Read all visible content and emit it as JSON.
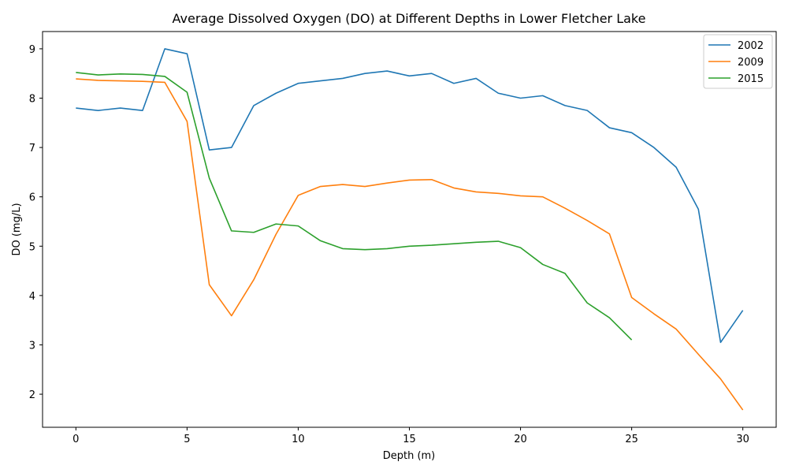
{
  "chart_data": {
    "type": "line",
    "title": "Average Dissolved Oxygen (DO) at Different Depths in Lower Fletcher Lake",
    "xlabel": "Depth (m)",
    "ylabel": "DO (mg/L)",
    "xlim": [
      -1.5,
      31.5
    ],
    "ylim": [
      1.33,
      9.35
    ],
    "xticks": [
      0,
      5,
      10,
      15,
      20,
      25,
      30
    ],
    "yticks": [
      2,
      3,
      4,
      5,
      6,
      7,
      8,
      9
    ],
    "grid": false,
    "legend_position": "top-right",
    "series": [
      {
        "name": "2002",
        "color": "#1f77b4",
        "x": [
          0,
          1,
          2,
          3,
          4,
          5,
          6,
          7,
          8,
          9,
          10,
          11,
          12,
          13,
          14,
          15,
          16,
          17,
          18,
          19,
          20,
          21,
          22,
          23,
          24,
          25,
          26,
          27,
          28,
          29,
          30
        ],
        "y": [
          7.8,
          7.75,
          7.8,
          7.75,
          9.0,
          8.9,
          6.95,
          7.0,
          7.85,
          8.1,
          8.3,
          8.35,
          8.4,
          8.5,
          8.55,
          8.45,
          8.5,
          8.3,
          8.4,
          8.1,
          8.0,
          8.05,
          7.85,
          7.75,
          7.4,
          7.3,
          7.0,
          6.6,
          5.75,
          3.05,
          3.7
        ]
      },
      {
        "name": "2009",
        "color": "#ff7f0e",
        "x": [
          0,
          1,
          2,
          3,
          4,
          5,
          6,
          7,
          8,
          9,
          10,
          11,
          12,
          13,
          14,
          15,
          16,
          17,
          18,
          19,
          20,
          21,
          22,
          23,
          24,
          25,
          26,
          27,
          28,
          29,
          30
        ],
        "y": [
          8.39,
          8.36,
          8.35,
          8.34,
          8.32,
          7.53,
          4.22,
          3.59,
          4.32,
          5.24,
          6.03,
          6.21,
          6.25,
          6.21,
          6.28,
          6.34,
          6.35,
          6.18,
          6.1,
          6.07,
          6.02,
          6.0,
          5.77,
          5.52,
          5.25,
          3.96,
          3.63,
          3.32,
          2.81,
          2.31,
          1.68
        ]
      },
      {
        "name": "2015",
        "color": "#2ca02c",
        "x": [
          0,
          1,
          2,
          3,
          4,
          5,
          6,
          7,
          8,
          9,
          10,
          11,
          12,
          13,
          14,
          15,
          16,
          17,
          18,
          19,
          20,
          21,
          22,
          23,
          24,
          25
        ],
        "y": [
          8.52,
          8.47,
          8.49,
          8.48,
          8.44,
          8.12,
          6.38,
          5.31,
          5.28,
          5.45,
          5.41,
          5.11,
          4.95,
          4.93,
          4.95,
          5.0,
          5.02,
          5.05,
          5.08,
          5.1,
          4.97,
          4.63,
          4.45,
          3.85,
          3.55,
          3.1
        ]
      }
    ]
  }
}
